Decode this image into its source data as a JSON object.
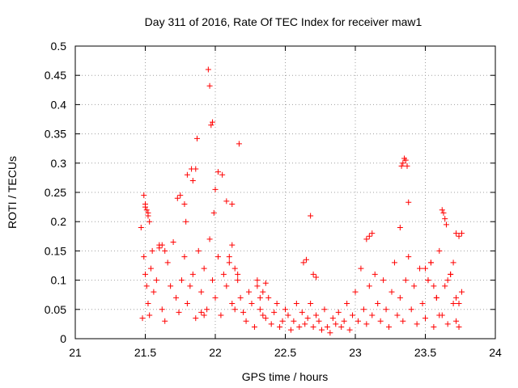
{
  "chart_data": {
    "type": "scatter",
    "title": "Day 311 of 2016, Rate Of TEC Index for receiver maw1",
    "xlabel": "GPS time / hours",
    "ylabel": "ROTI / TECUs",
    "xlim": [
      21,
      24
    ],
    "ylim": [
      0,
      0.5
    ],
    "xticks": [
      "21",
      "21.5",
      "22",
      "22.5",
      "23",
      "23.5",
      "24"
    ],
    "yticks": [
      "0",
      "0.05",
      "0.1",
      "0.15",
      "0.2",
      "0.25",
      "0.3",
      "0.35",
      "0.4",
      "0.45",
      "0.5"
    ],
    "grid": true,
    "marker": "+",
    "color": "#ff0000",
    "series": [
      {
        "name": "maw1",
        "x": [
          21.95,
          21.96,
          21.97,
          21.98,
          21.87,
          22.17,
          22.0,
          22.02,
          21.83,
          21.8,
          21.49,
          21.5,
          21.52,
          21.47,
          21.73,
          21.75,
          21.78,
          21.79,
          21.84,
          21.86,
          21.99,
          22.05,
          22.08,
          22.12,
          21.48,
          21.49,
          21.5,
          21.51,
          21.52,
          21.53,
          21.54,
          21.55,
          21.56,
          21.58,
          21.6,
          21.62,
          21.64,
          21.66,
          21.68,
          21.7,
          21.72,
          21.74,
          21.76,
          21.78,
          21.8,
          21.82,
          21.84,
          21.86,
          21.88,
          21.9,
          21.92,
          21.94,
          21.96,
          21.98,
          22.0,
          22.02,
          22.04,
          22.06,
          22.08,
          22.1,
          22.12,
          22.14,
          22.16,
          22.18,
          22.2,
          22.22,
          22.24,
          22.26,
          22.28,
          22.3,
          22.32,
          22.34,
          22.36,
          22.38,
          22.4,
          22.42,
          22.44,
          22.46,
          22.48,
          22.5,
          22.52,
          22.54,
          22.56,
          22.58,
          22.6,
          22.62,
          22.64,
          22.66,
          22.68,
          22.7,
          22.72,
          22.74,
          22.76,
          22.78,
          22.8,
          22.82,
          22.84,
          22.86,
          22.88,
          22.9,
          22.92,
          22.94,
          22.96,
          22.98,
          23.0,
          23.02,
          23.04,
          23.06,
          23.08,
          23.1,
          23.12,
          23.14,
          23.16,
          23.18,
          23.2,
          23.22,
          23.24,
          23.26,
          23.28,
          23.3,
          23.32,
          23.34,
          23.36,
          23.38,
          23.4,
          23.42,
          23.44,
          23.46,
          23.48,
          23.5,
          23.52,
          23.54,
          23.56,
          23.58,
          23.6,
          23.62,
          23.64,
          23.66,
          23.68,
          23.7,
          23.72,
          23.74,
          23.76,
          23.33,
          23.34,
          23.35,
          23.36,
          23.37,
          23.38,
          23.32,
          23.62,
          23.63,
          23.64,
          23.65,
          23.72,
          23.74,
          23.76,
          23.08,
          23.1,
          23.12,
          22.68,
          22.63,
          22.65,
          22.7,
          22.72,
          21.5,
          21.51,
          21.52,
          21.53,
          21.6,
          21.62,
          21.64,
          21.9,
          21.92,
          22.1,
          22.12,
          22.14,
          22.16,
          22.3,
          22.32,
          22.34,
          22.36,
          23.5,
          23.52,
          23.54,
          23.56,
          23.58,
          23.6,
          23.66,
          23.68,
          23.7,
          23.72,
          23.74
        ],
        "y": [
          0.46,
          0.432,
          0.365,
          0.37,
          0.342,
          0.333,
          0.255,
          0.285,
          0.29,
          0.28,
          0.245,
          0.225,
          0.21,
          0.19,
          0.24,
          0.245,
          0.23,
          0.2,
          0.27,
          0.29,
          0.215,
          0.28,
          0.235,
          0.23,
          0.035,
          0.14,
          0.11,
          0.09,
          0.06,
          0.04,
          0.12,
          0.15,
          0.08,
          0.1,
          0.16,
          0.05,
          0.03,
          0.13,
          0.09,
          0.165,
          0.07,
          0.045,
          0.1,
          0.14,
          0.06,
          0.09,
          0.11,
          0.035,
          0.15,
          0.08,
          0.12,
          0.05,
          0.17,
          0.1,
          0.07,
          0.14,
          0.04,
          0.11,
          0.09,
          0.13,
          0.06,
          0.05,
          0.1,
          0.07,
          0.045,
          0.03,
          0.08,
          0.06,
          0.02,
          0.1,
          0.05,
          0.04,
          0.035,
          0.07,
          0.025,
          0.045,
          0.06,
          0.02,
          0.03,
          0.05,
          0.04,
          0.015,
          0.03,
          0.06,
          0.02,
          0.045,
          0.025,
          0.035,
          0.06,
          0.02,
          0.04,
          0.03,
          0.015,
          0.05,
          0.02,
          0.01,
          0.035,
          0.025,
          0.045,
          0.02,
          0.03,
          0.06,
          0.015,
          0.04,
          0.08,
          0.03,
          0.12,
          0.05,
          0.025,
          0.09,
          0.04,
          0.11,
          0.06,
          0.03,
          0.1,
          0.05,
          0.02,
          0.08,
          0.13,
          0.04,
          0.07,
          0.03,
          0.1,
          0.14,
          0.05,
          0.09,
          0.025,
          0.12,
          0.06,
          0.035,
          0.1,
          0.13,
          0.02,
          0.07,
          0.15,
          0.04,
          0.09,
          0.025,
          0.11,
          0.06,
          0.03,
          0.02,
          0.08,
          0.295,
          0.3,
          0.308,
          0.305,
          0.295,
          0.233,
          0.19,
          0.22,
          0.215,
          0.205,
          0.195,
          0.18,
          0.175,
          0.18,
          0.17,
          0.175,
          0.18,
          0.21,
          0.13,
          0.135,
          0.11,
          0.105,
          0.23,
          0.22,
          0.215,
          0.2,
          0.155,
          0.16,
          0.15,
          0.045,
          0.04,
          0.14,
          0.16,
          0.12,
          0.11,
          0.09,
          0.07,
          0.08,
          0.095,
          0.12,
          0.1,
          0.13,
          0.09,
          0.07,
          0.04,
          0.1,
          0.11,
          0.13,
          0.07,
          0.06
        ]
      }
    ]
  }
}
